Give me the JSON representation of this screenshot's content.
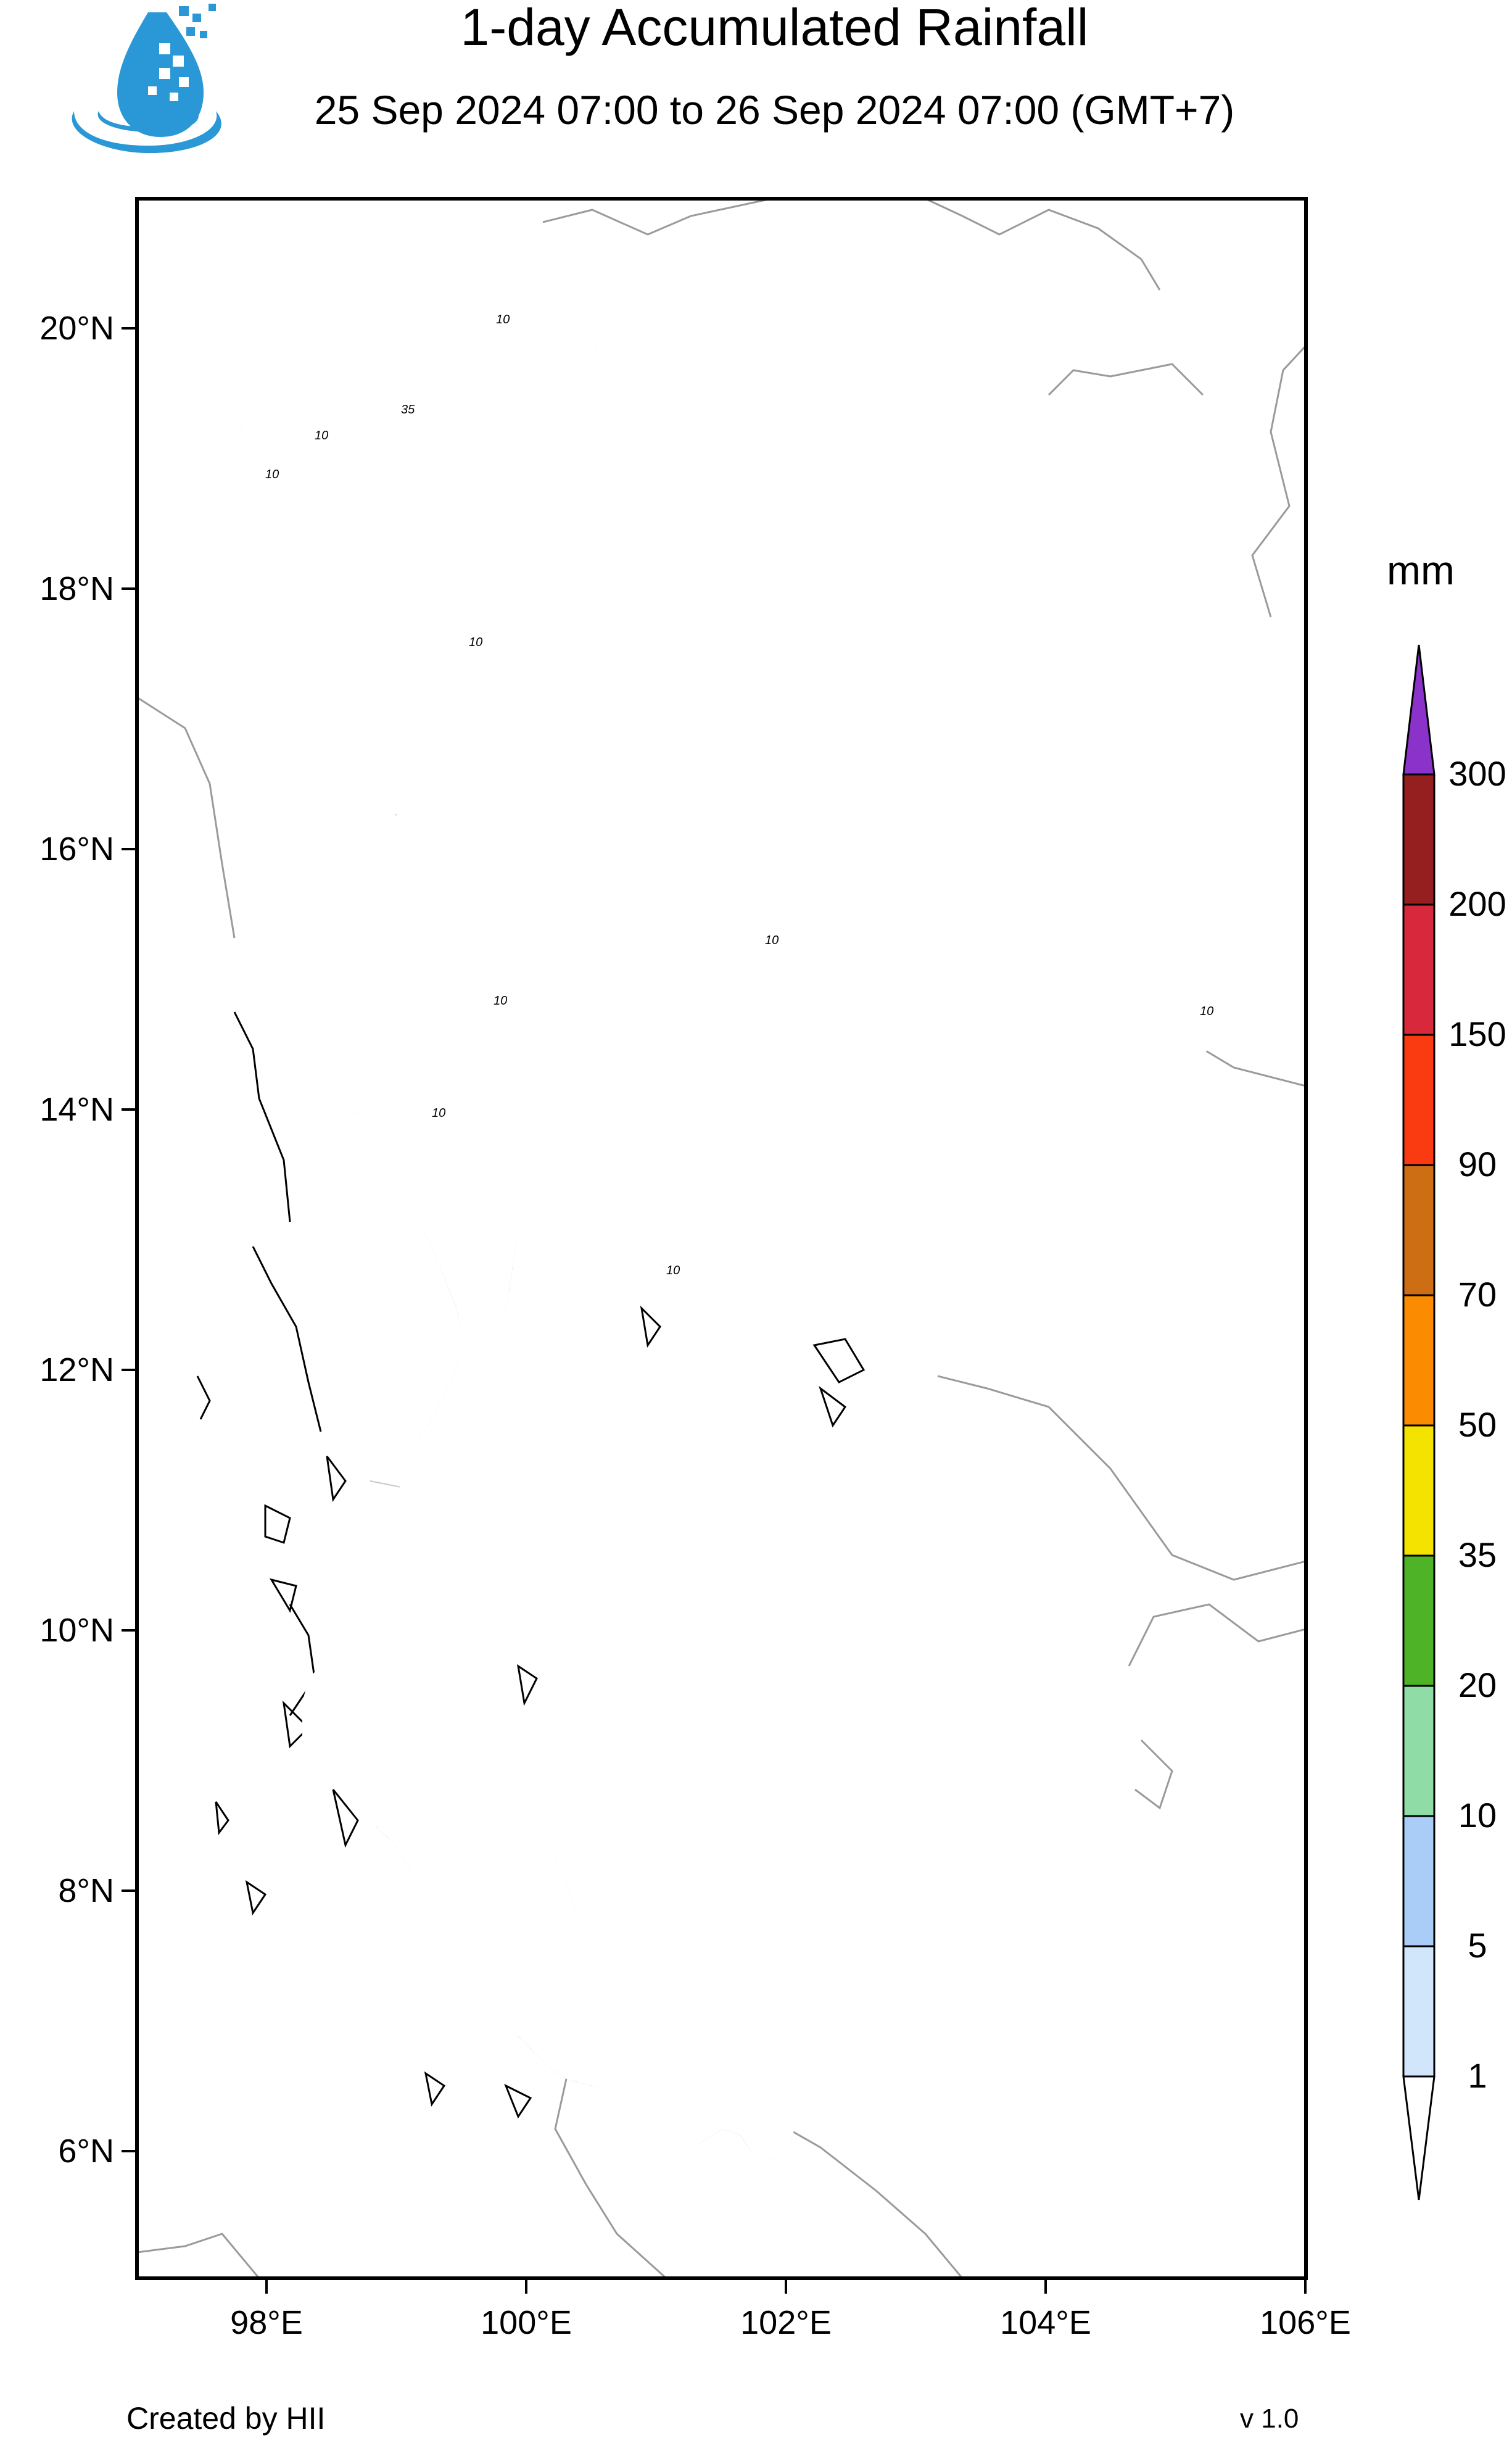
{
  "header": {
    "title": "1-day Accumulated Rainfall",
    "subtitle": "25 Sep 2024 07:00 to 26 Sep 2024 07:00 (GMT+7)"
  },
  "logo": {
    "icon": "water-drop-logo-icon"
  },
  "map": {
    "lon_range": [
      97,
      106
    ],
    "lat_range": [
      5,
      21
    ],
    "lat_ticks": [
      "20°N",
      "18°N",
      "16°N",
      "14°N",
      "12°N",
      "10°N",
      "8°N",
      "6°N"
    ],
    "lon_ticks": [
      "98°E",
      "100°E",
      "102°E",
      "104°E",
      "106°E"
    ],
    "contour_label": "10",
    "contour_label_35": "35"
  },
  "colorbar": {
    "unit": "mm",
    "levels": [
      "1",
      "5",
      "10",
      "20",
      "35",
      "50",
      "70",
      "90",
      "150",
      "200",
      "300"
    ],
    "colors": [
      "#ffffff",
      "#d2e6fb",
      "#a9cdf6",
      "#8fdca6",
      "#4eb327",
      "#f4e300",
      "#fb8b00",
      "#ce6e14",
      "#fa3a10",
      "#d8283c",
      "#951f1e",
      "#8a32c9"
    ]
  },
  "footer": {
    "credit": "Created by HII",
    "version": "v 1.0"
  }
}
